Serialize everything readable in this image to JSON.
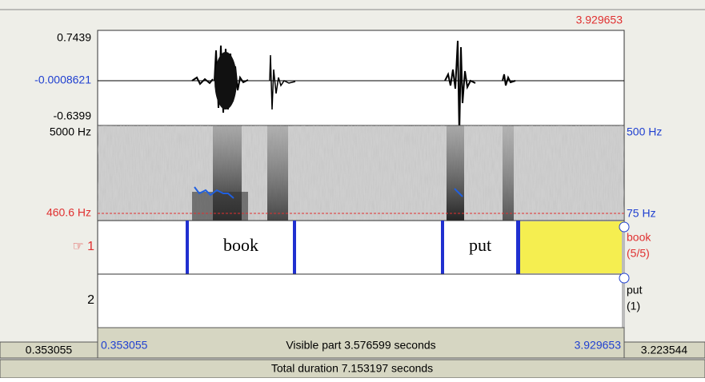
{
  "header": {
    "cursor_time": "3.929653"
  },
  "waveform": {
    "max": "0.7439",
    "center": "-0.0008621",
    "min": "-0.6399"
  },
  "spectrogram": {
    "top_left": "5000 Hz",
    "top_right": "500 Hz",
    "cursor_freq": "460.6 Hz",
    "bottom_right": "75 Hz"
  },
  "tiers": [
    {
      "label": "☞ 1",
      "name": "book",
      "count": "(5/5)",
      "intervals": [
        "book",
        "put"
      ]
    },
    {
      "label": "2",
      "name": "put",
      "count": "(1)"
    }
  ],
  "footer": {
    "window_start": "0.353055",
    "visible_start": "0.353055",
    "visible_part": "Visible part 3.576599 seconds",
    "visible_end": "3.929653",
    "window_end": "3.223544",
    "total_duration": "Total duration 7.153197 seconds"
  }
}
